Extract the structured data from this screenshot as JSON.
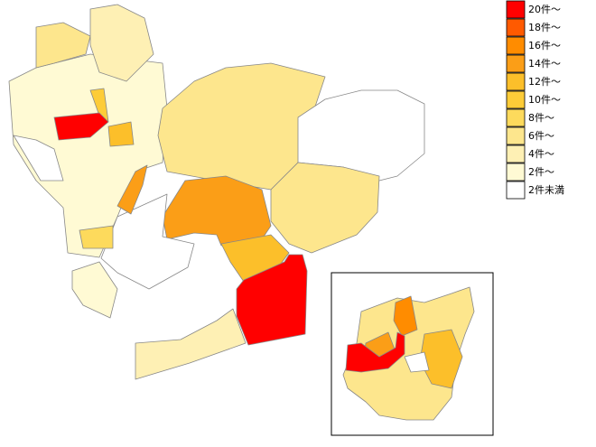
{
  "legend": {
    "items": [
      {
        "label": "20件～",
        "color": "#ff0000"
      },
      {
        "label": "18件～",
        "color": "#ff5a00"
      },
      {
        "label": "16件～",
        "color": "#ff8c00"
      },
      {
        "label": "14件～",
        "color": "#fb9e17"
      },
      {
        "label": "12件～",
        "color": "#fcbf2a"
      },
      {
        "label": "10件～",
        "color": "#fdcc38"
      },
      {
        "label": "8件～",
        "color": "#fdda5c"
      },
      {
        "label": "6件～",
        "color": "#fde68d"
      },
      {
        "label": "4件～",
        "color": "#fef0b4"
      },
      {
        "label": "2件～",
        "color": "#fffad4"
      },
      {
        "label": "2件未満",
        "color": "#ffffff"
      }
    ]
  }
}
